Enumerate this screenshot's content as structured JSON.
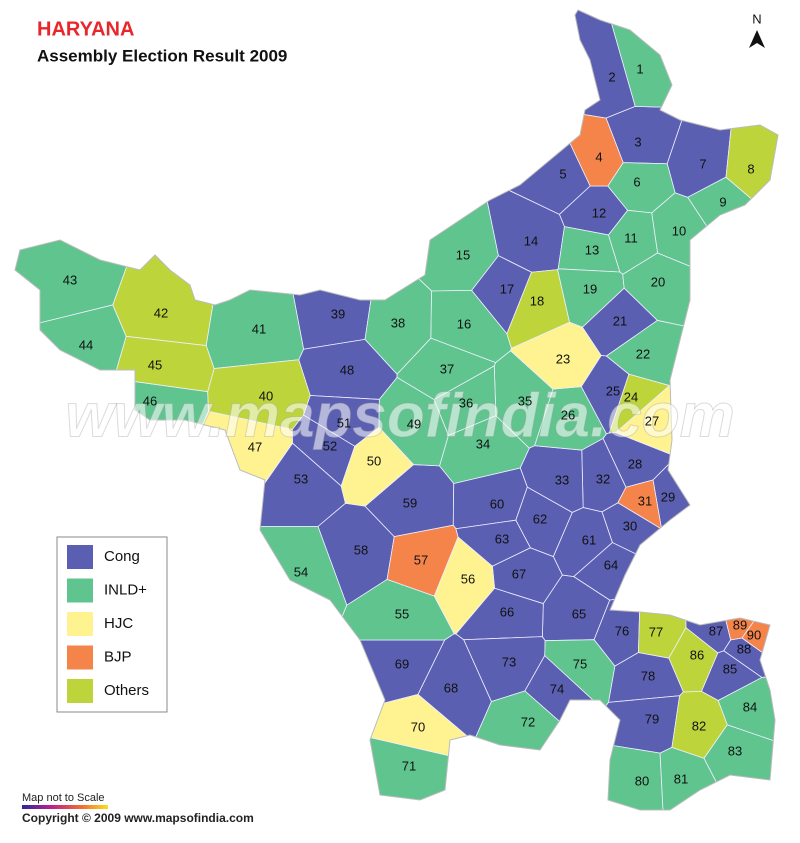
{
  "header": {
    "title": "HARYANA",
    "subtitle": "Assembly Election Result 2009",
    "north": "N"
  },
  "watermark": "www.mapsofindia.com",
  "footer": {
    "scale_note": "Map not to Scale",
    "copyright": "Copyright © 2009  www.mapsofindia.com"
  },
  "parties": [
    {
      "name": "Cong",
      "color": "#5b5fb2",
      "seats": [
        "2",
        "3",
        "5",
        "7",
        "12",
        "14",
        "17",
        "21",
        "25",
        "28",
        "29",
        "30",
        "32",
        "33",
        "39",
        "48",
        "51",
        "52",
        "53",
        "58",
        "59",
        "60",
        "61",
        "62",
        "63",
        "64",
        "65",
        "66",
        "67",
        "68",
        "69",
        "73",
        "74",
        "76",
        "78",
        "79",
        "85",
        "87",
        "88"
      ]
    },
    {
      "name": "INLD+",
      "color": "#5fc48e",
      "seats": [
        "1",
        "6",
        "9",
        "10",
        "11",
        "13",
        "15",
        "16",
        "19",
        "20",
        "22",
        "26",
        "34",
        "35",
        "36",
        "37",
        "38",
        "41",
        "43",
        "44",
        "46",
        "49",
        "54",
        "55",
        "71",
        "72",
        "75",
        "80",
        "81",
        "83",
        "84"
      ]
    },
    {
      "name": "HJC",
      "color": "#fff391",
      "seats": [
        "23",
        "27",
        "47",
        "50",
        "56",
        "70"
      ]
    },
    {
      "name": "BJP",
      "color": "#f4844a",
      "seats": [
        "4",
        "31",
        "57",
        "89",
        "90"
      ]
    },
    {
      "name": "Others",
      "color": "#bdd53b",
      "seats": [
        "8",
        "18",
        "24",
        "40",
        "42",
        "45",
        "77",
        "82",
        "86"
      ]
    }
  ]
}
